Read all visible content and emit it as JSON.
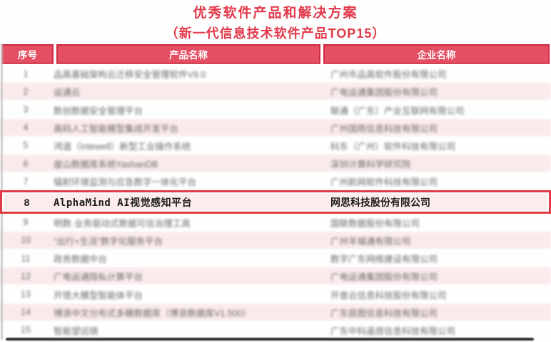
{
  "title": "优秀软件产品和解决方案",
  "subtitle": "（新一代信息技术软件产品TOP15）",
  "table": {
    "headers": {
      "no": "序号",
      "product": "产品名称",
      "company": "企业名称"
    },
    "rows": [
      {
        "no": "1",
        "product": "品高基础架构云迁移安全管理软件V9.0",
        "company": "广州市品高软件股份有限公司",
        "highlighted": false
      },
      {
        "no": "2",
        "product": "运通云",
        "company": "广电运通集团股份有限公司",
        "highlighted": false
      },
      {
        "no": "3",
        "product": "数创数据安全管理平台",
        "company": "联通（广东）产业互联网有限公司",
        "highlighted": false
      },
      {
        "no": "4",
        "product": "高码人工智能模型集成开发平台",
        "company": "广州国雨信息科技有限公司",
        "highlighted": false
      },
      {
        "no": "5",
        "product": "鸿道（Intewell）新型工业操作系统",
        "company": "科东（广州）软件科技有限公司",
        "highlighted": false
      },
      {
        "no": "6",
        "product": "崖山数据库系统YashanDB",
        "company": "深圳计算科学研究院",
        "highlighted": false
      },
      {
        "no": "7",
        "product": "辐射环境监测与应急数字一体化平台",
        "company": "广州航网软件科技有限公司",
        "highlighted": false
      },
      {
        "no": "8",
        "product": "AlphaMind AI视觉感知平台",
        "company": "网思科技股份有限公司",
        "highlighted": true
      },
      {
        "no": "9",
        "product": "明数·业务驱动式数据可信治理工具",
        "company": "国联数据股份有限公司",
        "highlighted": false
      },
      {
        "no": "10",
        "product": "“出行+生活”数字化服务平台",
        "company": "广州羊城通有限公司",
        "highlighted": false
      },
      {
        "no": "11",
        "product": "政务数据中台",
        "company": "数字广东网络建设有限公司",
        "highlighted": false
      },
      {
        "no": "12",
        "product": "广电运通隐私计算平台",
        "company": "广电运通集团股份有限公司",
        "highlighted": false
      },
      {
        "no": "13",
        "product": "开悟大模型智能体平台",
        "company": "开普云信息科技股份有限公司",
        "highlighted": false
      },
      {
        "no": "14",
        "product": "博浪中文分布式多模数据库（博浪数据库V1.500）",
        "company": "广东辰图信息科技有限公司",
        "highlighted": false
      },
      {
        "no": "15",
        "product": "智能望远镜",
        "company": "广东中科遥感信息科技有限公司",
        "highlighted": false
      }
    ]
  },
  "colors": {
    "red_text": "#e2394a",
    "header_bg": "#e44f63",
    "header_border": "#d02c42",
    "row_pink": "#fae7e8",
    "highlight_border": "#e13a44",
    "highlight_bg": "#fdecec"
  }
}
